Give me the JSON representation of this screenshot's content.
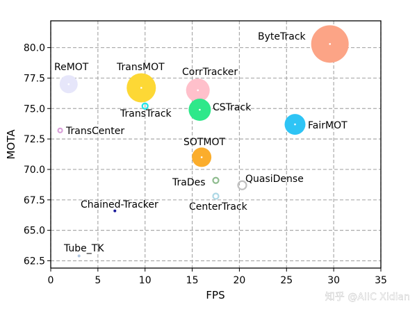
{
  "chart_data": {
    "type": "scatter",
    "title": "",
    "xlabel": "FPS",
    "ylabel": "MOTA",
    "xlim": [
      0,
      35
    ],
    "ylim": [
      61.9,
      82.2
    ],
    "xticks": [
      "0",
      "5",
      "10",
      "15",
      "20",
      "25",
      "30",
      "35"
    ],
    "yticks": [
      "62.5",
      "65.0",
      "67.5",
      "70.0",
      "72.5",
      "75.0",
      "77.5",
      "80.0"
    ],
    "grid": true,
    "grid_style": "dashed",
    "points": [
      {
        "name": "ReMOT",
        "x": 1.9,
        "y": 77.0,
        "color": "#e6e6fa",
        "hollow": false
      },
      {
        "name": "TransMOT",
        "x": 9.6,
        "y": 76.7,
        "color": "#fdd835",
        "hollow": false
      },
      {
        "name": "TransTrack",
        "x": 10.0,
        "y": 75.2,
        "color": "#22e5e5",
        "hollow": true
      },
      {
        "name": "CorrTracker",
        "x": 15.6,
        "y": 76.5,
        "color": "#ffc0cb",
        "hollow": false
      },
      {
        "name": "CSTrack",
        "x": 15.8,
        "y": 74.9,
        "color": "#2ee88a",
        "hollow": false
      },
      {
        "name": "TransCenter",
        "x": 1.0,
        "y": 73.2,
        "color": "#d9a0d9",
        "hollow": true
      },
      {
        "name": "SOTMOT",
        "x": 16.0,
        "y": 71.0,
        "color": "#fbad2c",
        "hollow": false
      },
      {
        "name": "ByteTrack",
        "x": 29.6,
        "y": 80.3,
        "color": "#fca486",
        "hollow": false
      },
      {
        "name": "FairMOT",
        "x": 25.9,
        "y": 73.7,
        "color": "#2ec4f5",
        "hollow": false
      },
      {
        "name": "TraDes",
        "x": 17.5,
        "y": 69.1,
        "color": "#8fbc8f",
        "hollow": true
      },
      {
        "name": "CenterTrack",
        "x": 17.5,
        "y": 67.8,
        "color": "#add8e6",
        "hollow": true
      },
      {
        "name": "QuasiDense",
        "x": 20.3,
        "y": 68.7,
        "color": "#c0c0c0",
        "hollow": true
      },
      {
        "name": "Chained-Tracker",
        "x": 6.8,
        "y": 66.6,
        "color": "#1a1a9a",
        "hollow": false
      },
      {
        "name": "Tube_TK",
        "x": 3.0,
        "y": 62.9,
        "color": "#b0c4de",
        "hollow": false
      }
    ]
  },
  "watermark": "知乎 @AIIC Xidian"
}
